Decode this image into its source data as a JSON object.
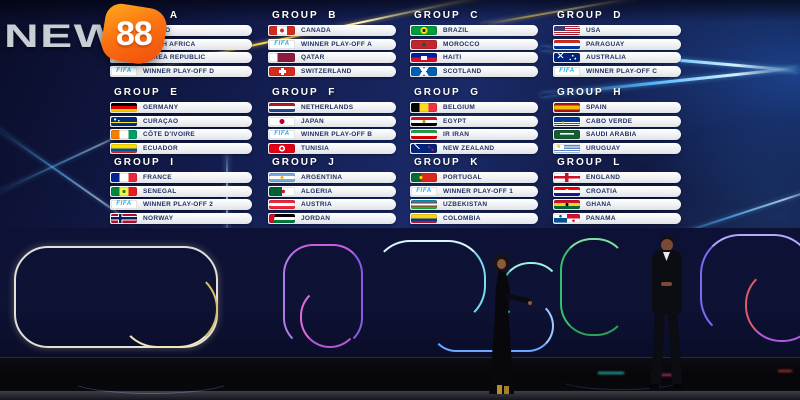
{
  "brand": {
    "text": "NEW",
    "number": "88"
  },
  "fifa_label": "FIFA",
  "colors": {
    "brand_orange": "#fb7312",
    "fifa_cyan": "#1caee4",
    "pill_text_navy": "#1c2d5e",
    "header_white": "#ffffff",
    "backdrop_navy": "#131c4e",
    "streak_yellow": "#ffd84a",
    "streak_cyan": "#57b8ff"
  },
  "groups": [
    {
      "name": "GROUP A",
      "teams": [
        {
          "label": "MEXICO",
          "flag": "mx"
        },
        {
          "label": "SOUTH AFRICA",
          "flag": "za"
        },
        {
          "label": "KOREA REPUBLIC",
          "flag": "kr"
        },
        {
          "label": "WINNER PLAY-OFF D",
          "flag": "fifa"
        }
      ]
    },
    {
      "name": "GROUP B",
      "teams": [
        {
          "label": "CANADA",
          "flag": "ca"
        },
        {
          "label": "WINNER PLAY-OFF A",
          "flag": "fifa"
        },
        {
          "label": "QATAR",
          "flag": "qa"
        },
        {
          "label": "SWITZERLAND",
          "flag": "ch"
        }
      ]
    },
    {
      "name": "GROUP C",
      "teams": [
        {
          "label": "BRAZIL",
          "flag": "br"
        },
        {
          "label": "MOROCCO",
          "flag": "ma"
        },
        {
          "label": "HAITI",
          "flag": "ht"
        },
        {
          "label": "SCOTLAND",
          "flag": "sct"
        }
      ]
    },
    {
      "name": "GROUP D",
      "teams": [
        {
          "label": "USA",
          "flag": "us"
        },
        {
          "label": "PARAGUAY",
          "flag": "py"
        },
        {
          "label": "AUSTRALIA",
          "flag": "au"
        },
        {
          "label": "WINNER PLAY-OFF C",
          "flag": "fifa"
        }
      ]
    },
    {
      "name": "GROUP E",
      "teams": [
        {
          "label": "GERMANY",
          "flag": "de"
        },
        {
          "label": "CURAÇAO",
          "flag": "cw"
        },
        {
          "label": "CÔTE D'IVOIRE",
          "flag": "ci"
        },
        {
          "label": "ECUADOR",
          "flag": "ec"
        }
      ]
    },
    {
      "name": "GROUP F",
      "teams": [
        {
          "label": "NETHERLANDS",
          "flag": "nl"
        },
        {
          "label": "JAPAN",
          "flag": "jp"
        },
        {
          "label": "WINNER PLAY-OFF B",
          "flag": "fifa"
        },
        {
          "label": "TUNISIA",
          "flag": "tn"
        }
      ]
    },
    {
      "name": "GROUP G",
      "teams": [
        {
          "label": "BELGIUM",
          "flag": "be"
        },
        {
          "label": "EGYPT",
          "flag": "eg"
        },
        {
          "label": "IR IRAN",
          "flag": "ir"
        },
        {
          "label": "NEW ZEALAND",
          "flag": "nz"
        }
      ]
    },
    {
      "name": "GROUP H",
      "teams": [
        {
          "label": "SPAIN",
          "flag": "es"
        },
        {
          "label": "CABO VERDE",
          "flag": "cv"
        },
        {
          "label": "SAUDI ARABIA",
          "flag": "sa"
        },
        {
          "label": "URUGUAY",
          "flag": "uy"
        }
      ]
    },
    {
      "name": "GROUP I",
      "teams": [
        {
          "label": "FRANCE",
          "flag": "fr"
        },
        {
          "label": "SENEGAL",
          "flag": "sn"
        },
        {
          "label": "WINNER PLAY-OFF 2",
          "flag": "fifa"
        },
        {
          "label": "NORWAY",
          "flag": "no"
        }
      ]
    },
    {
      "name": "GROUP J",
      "teams": [
        {
          "label": "ARGENTINA",
          "flag": "ar"
        },
        {
          "label": "ALGERIA",
          "flag": "dz"
        },
        {
          "label": "AUSTRIA",
          "flag": "at"
        },
        {
          "label": "JORDAN",
          "flag": "jo"
        }
      ]
    },
    {
      "name": "GROUP K",
      "teams": [
        {
          "label": "PORTUGAL",
          "flag": "pt"
        },
        {
          "label": "WINNER PLAY-OFF 1",
          "flag": "fifa"
        },
        {
          "label": "UZBEKISTAN",
          "flag": "uz"
        },
        {
          "label": "COLOMBIA",
          "flag": "co"
        }
      ]
    },
    {
      "name": "GROUP L",
      "teams": [
        {
          "label": "ENGLAND",
          "flag": "eng"
        },
        {
          "label": "CROATIA",
          "flag": "hr"
        },
        {
          "label": "GHANA",
          "flag": "gh"
        },
        {
          "label": "PANAMA",
          "flag": "pa"
        }
      ]
    }
  ]
}
